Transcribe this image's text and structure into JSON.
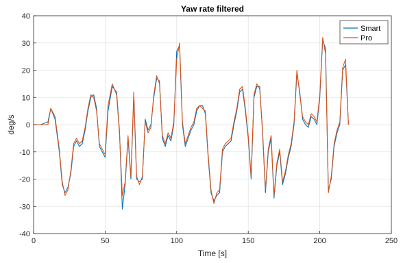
{
  "chart_data": {
    "type": "line",
    "title": "Yaw rate filtered",
    "xlabel": "Time [s]",
    "ylabel": "deg/s",
    "xlim": [
      0,
      250
    ],
    "ylim": [
      -40,
      40
    ],
    "xticks": [
      0,
      50,
      100,
      150,
      200,
      250
    ],
    "yticks": [
      -40,
      -30,
      -20,
      -10,
      0,
      10,
      20,
      30,
      40
    ],
    "xtick_labels": [
      "0",
      "50",
      "100",
      "150",
      "200",
      "250"
    ],
    "ytick_labels": [
      "-40",
      "-30",
      "-20",
      "-10",
      "0",
      "10",
      "20",
      "30",
      "40"
    ],
    "grid": true,
    "legend_position": "top-right",
    "series": [
      {
        "name": "Smart",
        "color": "#0072BD",
        "x": [
          0,
          5,
          10,
          12,
          15,
          18,
          20,
          22,
          24,
          26,
          28,
          30,
          32,
          34,
          36,
          38,
          40,
          42,
          44,
          46,
          48,
          50,
          52,
          55,
          58,
          60,
          62,
          64,
          66,
          68,
          70,
          72,
          74,
          76,
          78,
          80,
          82,
          84,
          86,
          88,
          90,
          92,
          94,
          96,
          98,
          100,
          102,
          104,
          106,
          108,
          110,
          112,
          114,
          116,
          118,
          120,
          122,
          124,
          126,
          128,
          130,
          132,
          134,
          136,
          138,
          140,
          142,
          144,
          146,
          148,
          150,
          152,
          154,
          156,
          158,
          160,
          162,
          164,
          166,
          168,
          170,
          172,
          174,
          176,
          178,
          180,
          182,
          184,
          186,
          188,
          190,
          192,
          194,
          196,
          198,
          200,
          202,
          204,
          206,
          208,
          210,
          212,
          214,
          216,
          218,
          220
        ],
        "y": [
          0,
          0,
          1,
          6,
          2,
          -10,
          -22,
          -25,
          -23,
          -18,
          -8,
          -6,
          -8,
          -7,
          -2,
          5,
          10,
          11,
          6,
          -8,
          -10,
          -12,
          5,
          14,
          12,
          -2,
          -31,
          -22,
          -5,
          -20,
          11,
          -20,
          -21,
          -20,
          2,
          -2,
          0,
          10,
          17,
          16,
          -5,
          -8,
          -4,
          -6,
          0,
          27,
          29,
          0,
          -8,
          -5,
          -2,
          0,
          5,
          7,
          7,
          4,
          -12,
          -25,
          -28,
          -26,
          -25,
          -10,
          -8,
          -7,
          -6,
          0,
          5,
          12,
          13,
          5,
          -5,
          -20,
          10,
          14,
          14,
          -3,
          -25,
          -10,
          -5,
          -27,
          -15,
          -10,
          -22,
          -18,
          -12,
          -8,
          0,
          19,
          12,
          2,
          0,
          -1,
          3,
          2,
          0,
          10,
          31,
          28,
          -24,
          -20,
          -8,
          -3,
          0,
          20,
          22,
          0
        ]
      },
      {
        "name": "Pro",
        "color": "#D95319",
        "x": [
          0,
          5,
          10,
          12,
          15,
          18,
          20,
          22,
          24,
          26,
          28,
          30,
          32,
          34,
          36,
          38,
          40,
          42,
          44,
          46,
          48,
          50,
          52,
          55,
          58,
          60,
          62,
          64,
          66,
          68,
          70,
          72,
          74,
          76,
          78,
          80,
          82,
          84,
          86,
          88,
          90,
          92,
          94,
          96,
          98,
          100,
          102,
          104,
          106,
          108,
          110,
          112,
          114,
          116,
          118,
          120,
          122,
          124,
          126,
          128,
          130,
          132,
          134,
          136,
          138,
          140,
          142,
          144,
          146,
          148,
          150,
          152,
          154,
          156,
          158,
          160,
          162,
          164,
          166,
          168,
          170,
          172,
          174,
          176,
          178,
          180,
          182,
          184,
          186,
          188,
          190,
          192,
          194,
          196,
          198,
          200,
          202,
          204,
          206,
          208,
          210,
          212,
          214,
          216,
          218,
          220
        ],
        "y": [
          0,
          0,
          0,
          6,
          3,
          -9,
          -21,
          -26,
          -24,
          -17,
          -7,
          -5,
          -7,
          -6,
          -1,
          6,
          11,
          10,
          5,
          -7,
          -9,
          -11,
          7,
          15,
          11,
          -3,
          -26,
          -21,
          -4,
          -19,
          12,
          -19,
          -22,
          -19,
          1,
          -3,
          -1,
          11,
          18,
          15,
          -4,
          -7,
          -3,
          -5,
          1,
          24,
          30,
          1,
          -7,
          -4,
          -1,
          1,
          6,
          7,
          6,
          5,
          -11,
          -24,
          -29,
          -25,
          -24,
          -9,
          -7,
          -6,
          -5,
          1,
          6,
          13,
          14,
          6,
          -4,
          -19,
          11,
          15,
          13,
          -2,
          -24,
          -9,
          -4,
          -26,
          -14,
          -9,
          -21,
          -17,
          -11,
          -7,
          1,
          20,
          11,
          3,
          1,
          0,
          4,
          3,
          1,
          11,
          32,
          26,
          -25,
          -19,
          -7,
          -2,
          1,
          21,
          24,
          0
        ]
      }
    ]
  }
}
